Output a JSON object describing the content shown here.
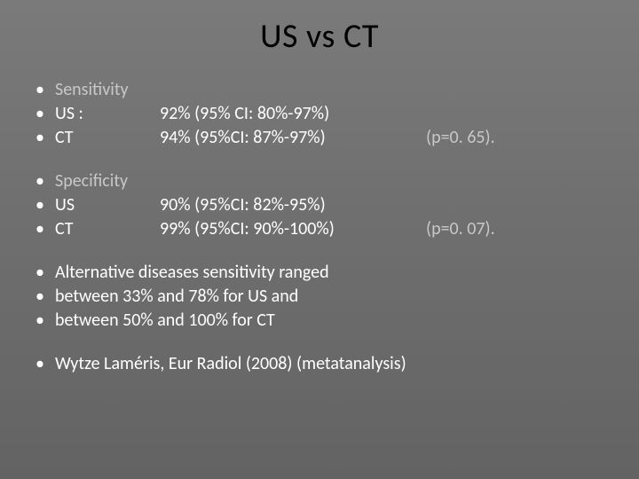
{
  "title": "US vs CT",
  "colors": {
    "title_color": "#000000",
    "text_color": "#ffffff",
    "faded_color": "#c8c8c8",
    "background_top": "#7a7a7a",
    "background_bottom": "#636363"
  },
  "fonts": {
    "title_size_pt": 38,
    "body_size_pt": 20
  },
  "bullet_char": "•",
  "sensitivity": {
    "heading": "Sensitivity",
    "rows": [
      {
        "label": "US :",
        "value": "92% (95% CI: 80%-97%)",
        "p": ""
      },
      {
        "label": "CT",
        "value": "94% (95%CI: 87%-97%)",
        "p": "(p=0. 65)."
      }
    ]
  },
  "specificity": {
    "heading": "Specificity",
    "rows": [
      {
        "label": "US",
        "value": "90% (95%CI: 82%-95%)",
        "p": ""
      },
      {
        "label": "CT",
        "value": "99% (95%CI: 90%-100%)",
        "p": "(p=0. 07)."
      }
    ]
  },
  "alt": {
    "lines": [
      "Alternative diseases sensitivity ranged",
      "between 33% and 78% for US and",
      "between 50% and 100% for CT"
    ]
  },
  "citation": "Wytze Laméris, Eur Radiol (2008) (metatanalysis)"
}
